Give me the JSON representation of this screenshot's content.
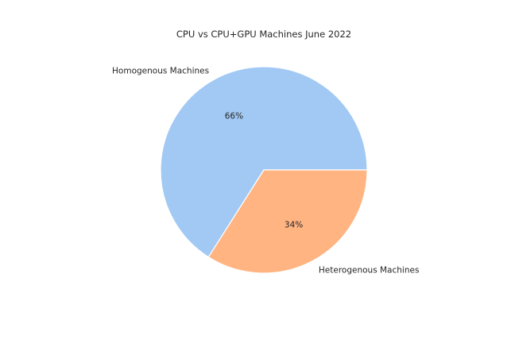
{
  "chart_data": {
    "type": "pie",
    "title": "CPU vs CPU+GPU Machines June 2022",
    "slices": [
      {
        "label": "Homogenous Machines",
        "value": 66,
        "pct_label": "66%",
        "color": "#a1c9f4"
      },
      {
        "label": "Heterogenous Machines",
        "value": 34,
        "pct_label": "34%",
        "color": "#ffb482"
      }
    ],
    "start_angle_deg": 0,
    "direction": "counterclockwise"
  }
}
